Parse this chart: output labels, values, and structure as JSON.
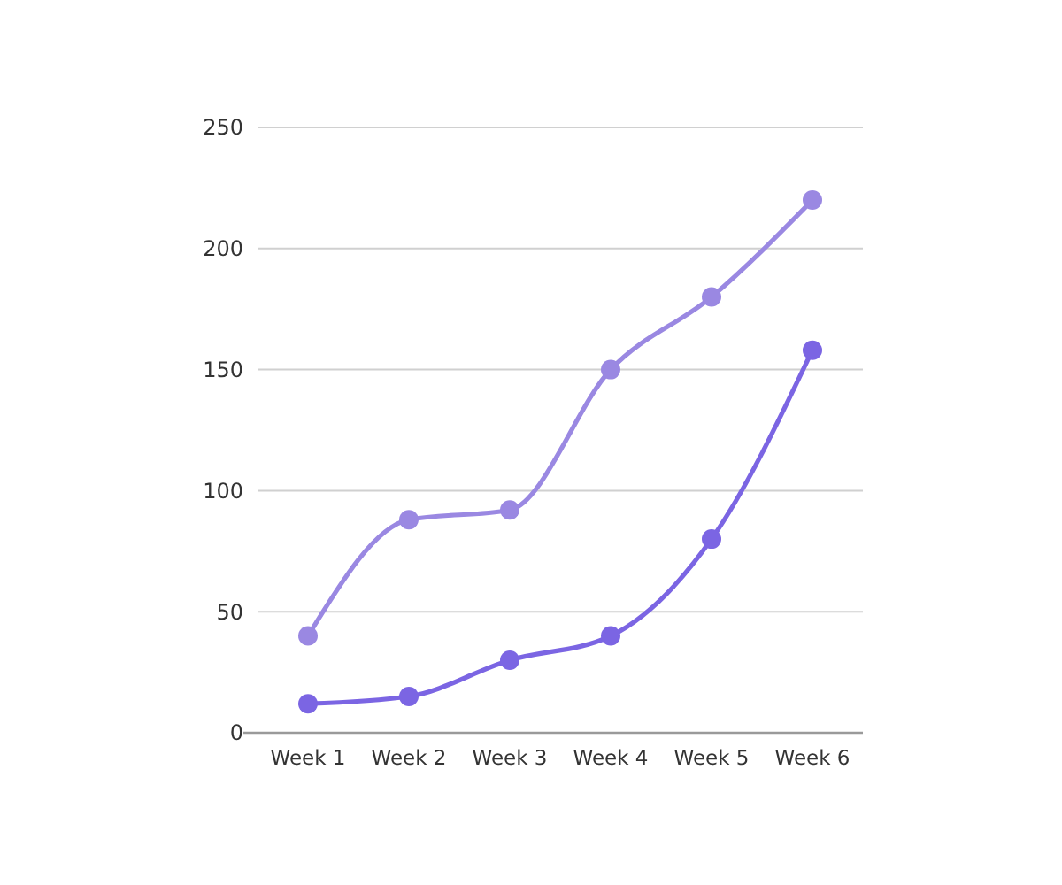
{
  "chart_data": {
    "type": "line",
    "categories": [
      "Week 1",
      "Week 2",
      "Week 3",
      "Week 4",
      "Week 5",
      "Week 6"
    ],
    "series": [
      {
        "color": "#9a88e2",
        "values": [
          40,
          88,
          92,
          150,
          180,
          220
        ]
      },
      {
        "color": "#7b65e3",
        "values": [
          12,
          15,
          30,
          40,
          80,
          158
        ]
      }
    ],
    "ylim": [
      0,
      250
    ],
    "yticks": [
      0,
      50,
      100,
      150,
      200,
      250
    ],
    "grid": "y",
    "marker": "circle",
    "line_style": "solid"
  }
}
